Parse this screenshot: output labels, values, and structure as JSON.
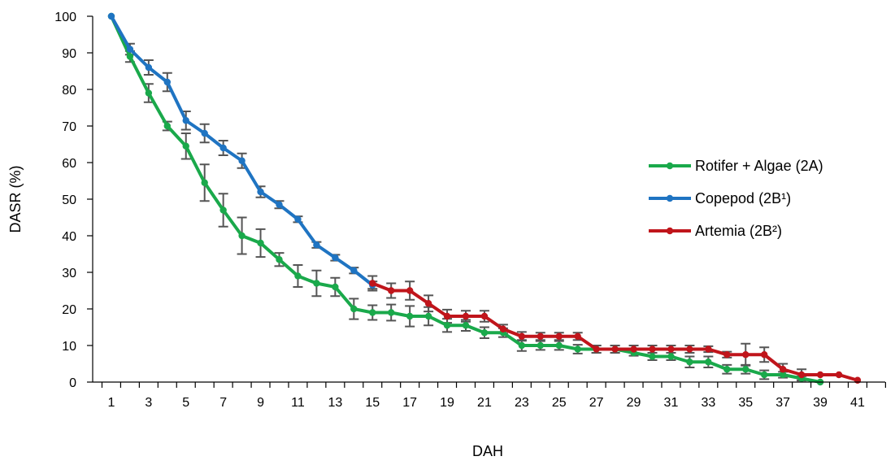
{
  "chart_data": {
    "type": "line",
    "xlabel": "DAH",
    "ylabel": "DASR (%)",
    "xlim": [
      0,
      42
    ],
    "ylim": [
      0,
      100
    ],
    "x_ticks": [
      1,
      3,
      5,
      7,
      9,
      11,
      13,
      15,
      17,
      19,
      21,
      23,
      25,
      27,
      29,
      31,
      33,
      35,
      37,
      39,
      41
    ],
    "y_ticks": [
      0,
      10,
      20,
      30,
      40,
      50,
      60,
      70,
      80,
      90,
      100
    ],
    "grid": false,
    "legend_position": "right",
    "series": [
      {
        "name": "Rotifer + Algae (2A)",
        "color": "#1aa94b",
        "x": [
          1,
          2,
          3,
          4,
          5,
          6,
          7,
          8,
          9,
          10,
          11,
          12,
          13,
          14,
          15,
          16,
          17,
          18,
          19,
          20,
          21,
          22,
          23,
          24,
          25,
          26,
          27,
          28,
          29,
          30,
          31,
          32,
          33,
          34,
          35,
          36,
          37,
          38,
          39
        ],
        "y": [
          100,
          89,
          79,
          70,
          64.5,
          54.5,
          47,
          40,
          38,
          33.5,
          29,
          27,
          26,
          20,
          19,
          19,
          18,
          18,
          15.5,
          15.5,
          13.5,
          13.5,
          10,
          10,
          10,
          9,
          9,
          9,
          8,
          7,
          7,
          5.5,
          5.5,
          3.5,
          3.5,
          2,
          2,
          1,
          0
        ],
        "err": [
          0,
          1.5,
          2.5,
          1.2,
          3.5,
          5,
          4.5,
          5,
          3.8,
          1.8,
          3,
          3.5,
          2.5,
          2.8,
          2,
          2.2,
          2.8,
          2.5,
          1.8,
          1.5,
          1.5,
          1.2,
          1.5,
          1.2,
          1.2,
          1.2,
          1,
          1,
          0.8,
          1,
          1,
          1.5,
          1.5,
          1.2,
          1.2,
          1.2,
          0.8,
          0.6,
          0
        ]
      },
      {
        "name": "Copepod (2B¹)",
        "color": "#1f74c2",
        "x": [
          1,
          2,
          3,
          4,
          5,
          6,
          7,
          8,
          9,
          10,
          11,
          12,
          13,
          14,
          15
        ],
        "y": [
          100,
          91,
          86,
          82,
          71.5,
          68,
          64,
          60.5,
          52,
          48.5,
          44.5,
          37.5,
          34,
          30.5,
          26.5
        ],
        "err": [
          0,
          1.5,
          2,
          2.5,
          2.5,
          2.5,
          2,
          2,
          1.5,
          1,
          0.8,
          0.8,
          0.8,
          0.8,
          1
        ]
      },
      {
        "name": "Artemia (2B²)",
        "color": "#c0151b",
        "x": [
          15,
          16,
          17,
          18,
          19,
          20,
          21,
          22,
          23,
          24,
          25,
          26,
          27,
          28,
          29,
          30,
          31,
          32,
          33,
          34,
          35,
          36,
          37,
          38,
          39,
          40,
          41
        ],
        "y": [
          27,
          25,
          25,
          21.5,
          18,
          18,
          18,
          14.5,
          12.5,
          12.5,
          12.5,
          12.5,
          9,
          9,
          9,
          9,
          9,
          9,
          9,
          7.5,
          7.5,
          7.5,
          3.5,
          2,
          2,
          2,
          0.5
        ],
        "err": [
          2,
          2,
          2.5,
          2.2,
          1.8,
          1.5,
          1.5,
          1.2,
          1.2,
          1,
          1,
          1,
          1,
          1,
          1,
          1,
          1,
          1,
          0.8,
          0.8,
          3,
          2,
          1.5,
          1.5,
          0,
          0,
          0
        ]
      }
    ]
  }
}
